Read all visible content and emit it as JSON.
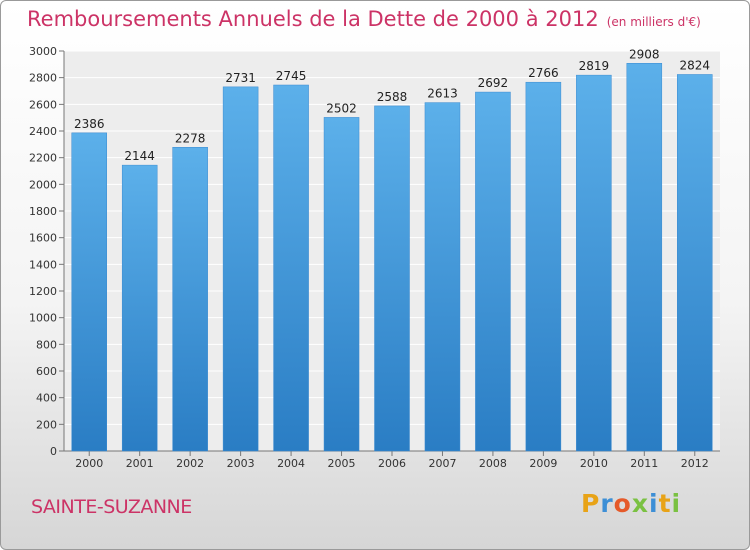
{
  "title": "Remboursements Annuels de la Dette de 2000 à 2012",
  "unit_note": "(en milliers d'€)",
  "city": "SAINTE-SUZANNE",
  "logo": {
    "letters": [
      "P",
      "r",
      "o",
      "x",
      "i",
      "t",
      "i"
    ],
    "colors": [
      "#e8a317",
      "#3d8fd6",
      "#e55a2a",
      "#7ac142",
      "#3d8fd6",
      "#e8a317",
      "#7ac142"
    ]
  },
  "colors": {
    "title": "#cc3366",
    "bar_top": "#5cb0ea",
    "bar_bottom": "#2a7dc4"
  },
  "chart_data": {
    "type": "bar",
    "categories": [
      "2000",
      "2001",
      "2002",
      "2003",
      "2004",
      "2005",
      "2006",
      "2007",
      "2008",
      "2009",
      "2010",
      "2011",
      "2012"
    ],
    "values": [
      2386,
      2144,
      2278,
      2731,
      2745,
      2502,
      2588,
      2613,
      2692,
      2766,
      2819,
      2908,
      2824
    ],
    "yticks": [
      0,
      200,
      400,
      600,
      800,
      1000,
      1200,
      1400,
      1600,
      1800,
      2000,
      2200,
      2400,
      2600,
      2800,
      3000
    ],
    "ylim": [
      0,
      3000
    ],
    "grid": true,
    "data_labels": true
  }
}
